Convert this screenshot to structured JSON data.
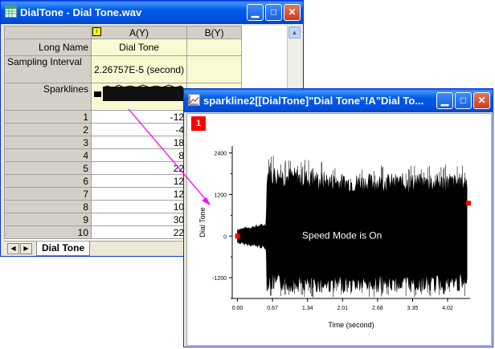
{
  "worksheet": {
    "title": "DialTone - Dial Tone.wav",
    "col_a_header": "A(Y)",
    "col_b_header": "B(Y)",
    "label_long_name": "Long Name",
    "label_sampling_interval": "Sampling Interval",
    "label_sparklines": "Sparklines",
    "long_name_a": "Dial Tone",
    "sampling_interval_a": "2.26757E-5 (second)",
    "rows": [
      {
        "n": "1",
        "v": "-12"
      },
      {
        "n": "2",
        "v": "-4"
      },
      {
        "n": "3",
        "v": "18"
      },
      {
        "n": "4",
        "v": "8"
      },
      {
        "n": "5",
        "v": "22"
      },
      {
        "n": "6",
        "v": "12"
      },
      {
        "n": "7",
        "v": "12"
      },
      {
        "n": "8",
        "v": "10"
      },
      {
        "n": "9",
        "v": "30"
      },
      {
        "n": "10",
        "v": "22"
      }
    ],
    "sheet_tab": "Dial Tone"
  },
  "graph": {
    "title": "sparkline2[[DialTone]\"Dial Tone\"!A\"Dial To...",
    "layer_indicator": "1",
    "annotation": "Speed Mode is On"
  },
  "chart_data": {
    "type": "line",
    "xlabel": "Time (second)",
    "ylabel": "Dial Tone",
    "xlim": [
      -0.1,
      4.45
    ],
    "ylim": [
      -1800,
      2600
    ],
    "xticks": [
      "0.00",
      "0.67",
      "1.34",
      "2.01",
      "2.68",
      "3.35",
      "4.02"
    ],
    "yticks": [
      "-1200",
      "0",
      "1200",
      "2400"
    ],
    "series": [
      {
        "envelope": [
          {
            "x": 0.0,
            "lo": -200,
            "hi": 200
          },
          {
            "x": 0.55,
            "lo": -350,
            "hi": 350
          },
          {
            "x": 0.56,
            "lo": -1450,
            "hi": 1900
          },
          {
            "x": 2.0,
            "lo": -1500,
            "hi": 1650
          },
          {
            "x": 4.4,
            "lo": -1450,
            "hi": 1650
          }
        ],
        "end_markers": [
          {
            "x": 0.0,
            "y": 0
          },
          {
            "x": 4.42,
            "y": 950
          }
        ]
      }
    ]
  }
}
